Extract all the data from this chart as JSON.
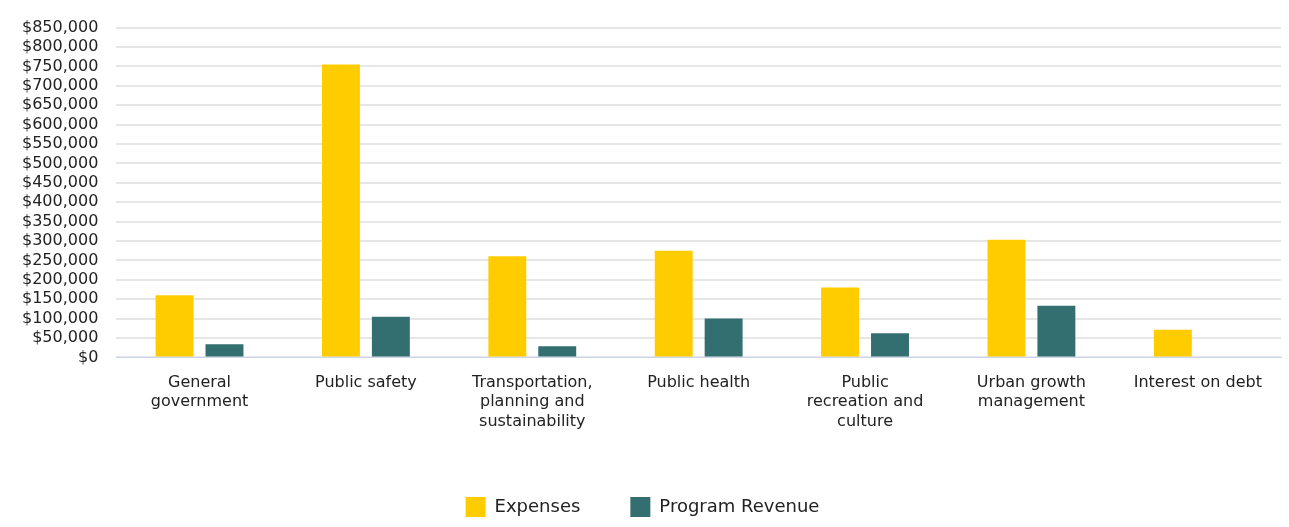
{
  "chart_data": {
    "type": "bar",
    "categories": [
      "General government",
      "Public safety",
      "Transportation, planning and sustainability",
      "Public health",
      "Public recreation and culture",
      "Urban growth management",
      "Interest on debt"
    ],
    "series": [
      {
        "name": "Expenses",
        "color": "#ffcc00",
        "values": [
          160000,
          755000,
          261000,
          275000,
          180000,
          303000,
          71000
        ]
      },
      {
        "name": "Program Revenue",
        "color": "#336e70",
        "values": [
          34000,
          105000,
          29000,
          100000,
          62000,
          133000,
          0
        ]
      }
    ],
    "ylim": [
      0,
      850000
    ],
    "yticks": [
      {
        "value": 0,
        "label": "$0"
      },
      {
        "value": 50000,
        "label": "$50,000"
      },
      {
        "value": 100000,
        "label": "$100,000"
      },
      {
        "value": 150000,
        "label": "$150,000"
      },
      {
        "value": 200000,
        "label": "$200,000"
      },
      {
        "value": 250000,
        "label": "$250,000"
      },
      {
        "value": 300000,
        "label": "$300,000"
      },
      {
        "value": 350000,
        "label": "$350,000"
      },
      {
        "value": 400000,
        "label": "$400,000"
      },
      {
        "value": 450000,
        "label": "$450,000"
      },
      {
        "value": 500000,
        "label": "$500,000"
      },
      {
        "value": 550000,
        "label": "$550,000"
      },
      {
        "value": 600000,
        "label": "$600,000"
      },
      {
        "value": 650000,
        "label": "$650,000"
      },
      {
        "value": 700000,
        "label": "$700,000"
      },
      {
        "value": 750000,
        "label": "$750,000"
      },
      {
        "value": 800000,
        "label": "$800,000"
      },
      {
        "value": 850000,
        "label": "$850,000"
      }
    ],
    "grid": "y",
    "legend": "bottom"
  }
}
